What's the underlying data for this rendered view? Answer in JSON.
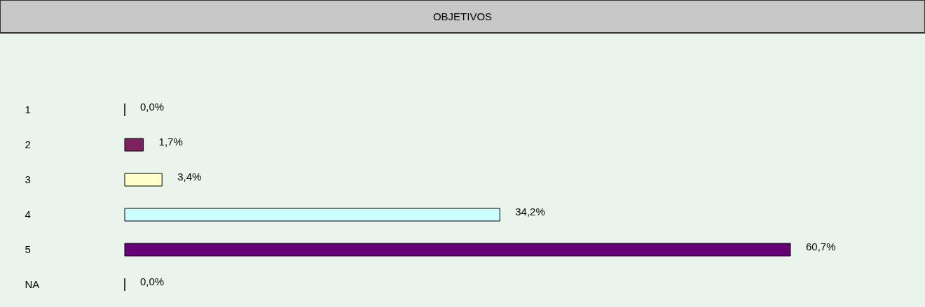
{
  "chart_data": {
    "type": "bar",
    "orientation": "horizontal",
    "title": "OBJETIVOS",
    "categories": [
      "1",
      "2",
      "3",
      "4",
      "5",
      "NA"
    ],
    "values": [
      0,
      1.7,
      3.4,
      34.2,
      60.7,
      0
    ],
    "value_labels": [
      "0,0%",
      "1,7%",
      "3,4%",
      "34,2%",
      "60,7%",
      "0,0%"
    ],
    "colors": [
      "#000000",
      "#7f2060",
      "#ffffcc",
      "#ccffff",
      "#660077",
      "#000000"
    ],
    "legend": false
  }
}
